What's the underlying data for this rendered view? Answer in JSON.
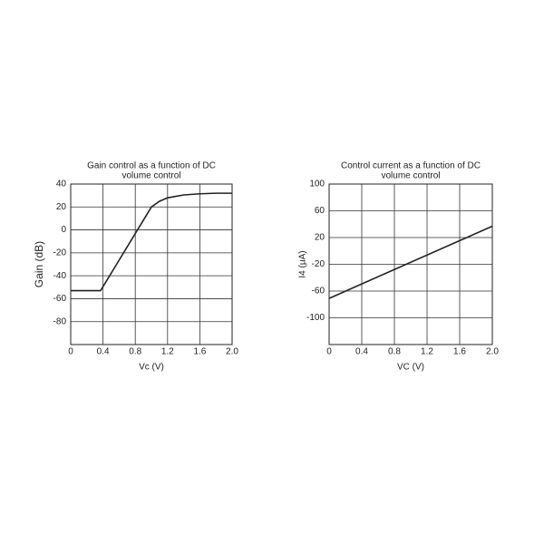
{
  "chart_data": [
    {
      "type": "line",
      "title": [
        "Gain control as a function of DC",
        "volume control"
      ],
      "x_label": "Vc (V)",
      "y_label": "Gain (dB)",
      "x": [
        0,
        0.37,
        1.0,
        1.1,
        1.2,
        1.4,
        1.6,
        1.8,
        2.0
      ],
      "series": [
        {
          "name": "Gain",
          "color": "#222222",
          "values": [
            -53,
            -53,
            20,
            25,
            28,
            30.5,
            31.5,
            32,
            32
          ]
        }
      ],
      "xlim": [
        0,
        2
      ],
      "xticks": [
        0,
        0.4,
        0.8,
        1.2,
        1.6,
        {
          "value": 2,
          "label": "2.0"
        }
      ],
      "ylim": [
        -100,
        40
      ],
      "yticks": [
        40,
        20,
        0,
        -20,
        -40,
        -60,
        -80
      ],
      "grid": true
    },
    {
      "type": "line",
      "title": [
        "Control current as a function of DC",
        "volume control"
      ],
      "x_label": "VC (V)",
      "y_label": "I4 (μA)",
      "x": [
        0,
        2.0
      ],
      "series": [
        {
          "name": "Current",
          "color": "#222222",
          "values": [
            -71,
            37
          ]
        }
      ],
      "xlim": [
        0,
        2
      ],
      "xticks": [
        0,
        0.4,
        0.8,
        1.2,
        1.6,
        {
          "value": 2,
          "label": "2.0"
        }
      ],
      "ylim": [
        -140,
        100
      ],
      "yticks": [
        100,
        60,
        20,
        -20,
        -60,
        -100
      ],
      "grid": true
    }
  ]
}
